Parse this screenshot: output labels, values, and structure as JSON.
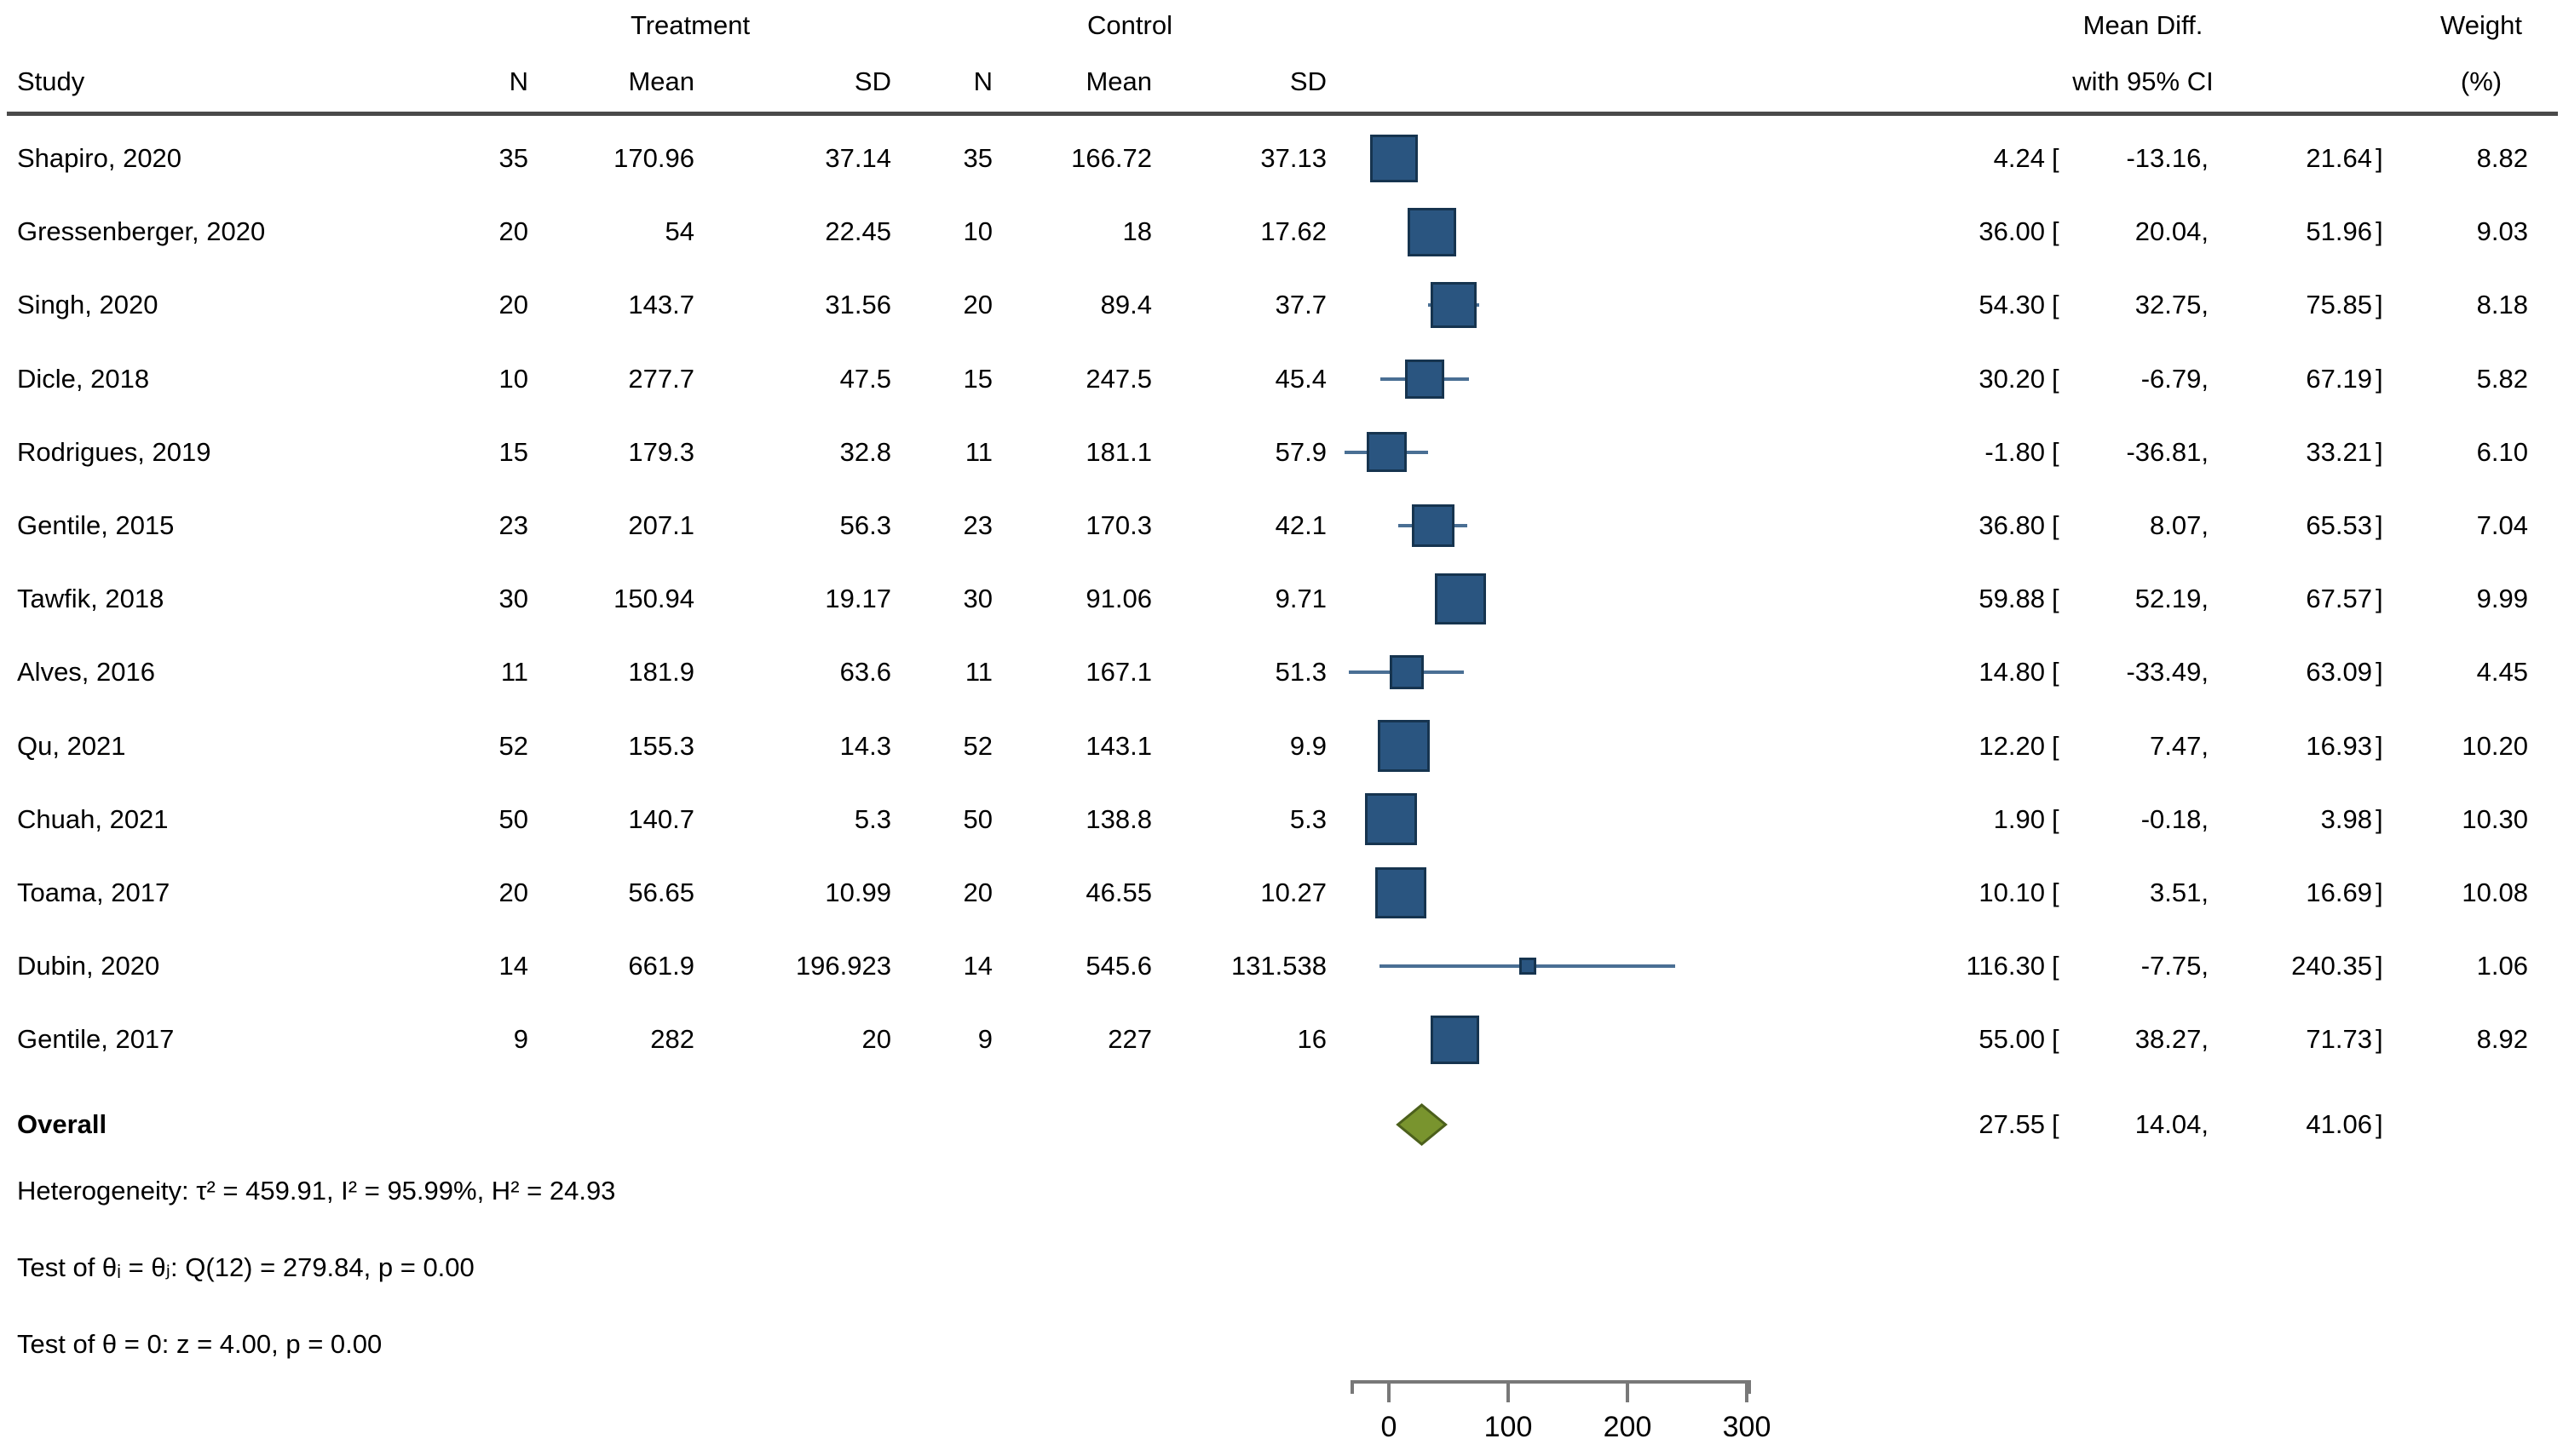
{
  "header": {
    "group1": "Treatment",
    "group2": "Control",
    "col_study": "Study",
    "col_n1": "N",
    "col_mean1": "Mean",
    "col_sd1": "SD",
    "col_n2": "N",
    "col_mean2": "Mean",
    "col_sd2": "SD",
    "col_effect_line1": "Mean Diff.",
    "col_effect_line2": "with 95% CI",
    "col_weight_line1": "Weight",
    "col_weight_line2": "(%)"
  },
  "studies": [
    {
      "name": "Shapiro, 2020",
      "n1": "35",
      "mean1": "170.96",
      "sd1": "37.14",
      "n2": "35",
      "mean2": "166.72",
      "sd2": "37.13",
      "est": "4.24",
      "lo": "-13.16",
      "hi": "21.64",
      "weight": "8.82",
      "est_v": 4.24,
      "lo_v": -13.16,
      "hi_v": 21.64,
      "weight_v": 8.82
    },
    {
      "name": "Gressenberger, 2020",
      "n1": "20",
      "mean1": "54",
      "sd1": "22.45",
      "n2": "10",
      "mean2": "18",
      "sd2": "17.62",
      "est": "36.00",
      "lo": "20.04",
      "hi": "51.96",
      "weight": "9.03",
      "est_v": 36.0,
      "lo_v": 20.04,
      "hi_v": 51.96,
      "weight_v": 9.03
    },
    {
      "name": "Singh, 2020",
      "n1": "20",
      "mean1": "143.7",
      "sd1": "31.56",
      "n2": "20",
      "mean2": "89.4",
      "sd2": "37.7",
      "est": "54.30",
      "lo": "32.75",
      "hi": "75.85",
      "weight": "8.18",
      "est_v": 54.3,
      "lo_v": 32.75,
      "hi_v": 75.85,
      "weight_v": 8.18
    },
    {
      "name": "Dicle, 2018",
      "n1": "10",
      "mean1": "277.7",
      "sd1": "47.5",
      "n2": "15",
      "mean2": "247.5",
      "sd2": "45.4",
      "est": "30.20",
      "lo": "-6.79",
      "hi": "67.19",
      "weight": "5.82",
      "est_v": 30.2,
      "lo_v": -6.79,
      "hi_v": 67.19,
      "weight_v": 5.82
    },
    {
      "name": "Rodrigues, 2019",
      "n1": "15",
      "mean1": "179.3",
      "sd1": "32.8",
      "n2": "11",
      "mean2": "181.1",
      "sd2": "57.9",
      "est": "-1.80",
      "lo": "-36.81",
      "hi": "33.21",
      "weight": "6.10",
      "est_v": -1.8,
      "lo_v": -36.81,
      "hi_v": 33.21,
      "weight_v": 6.1
    },
    {
      "name": "Gentile, 2015",
      "n1": "23",
      "mean1": "207.1",
      "sd1": "56.3",
      "n2": "23",
      "mean2": "170.3",
      "sd2": "42.1",
      "est": "36.80",
      "lo": "8.07",
      "hi": "65.53",
      "weight": "7.04",
      "est_v": 36.8,
      "lo_v": 8.07,
      "hi_v": 65.53,
      "weight_v": 7.04
    },
    {
      "name": "Tawfik, 2018",
      "n1": "30",
      "mean1": "150.94",
      "sd1": "19.17",
      "n2": "30",
      "mean2": "91.06",
      "sd2": "9.71",
      "est": "59.88",
      "lo": "52.19",
      "hi": "67.57",
      "weight": "9.99",
      "est_v": 59.88,
      "lo_v": 52.19,
      "hi_v": 67.57,
      "weight_v": 9.99
    },
    {
      "name": "Alves, 2016",
      "n1": "11",
      "mean1": "181.9",
      "sd1": "63.6",
      "n2": "11",
      "mean2": "167.1",
      "sd2": "51.3",
      "est": "14.80",
      "lo": "-33.49",
      "hi": "63.09",
      "weight": "4.45",
      "est_v": 14.8,
      "lo_v": -33.49,
      "hi_v": 63.09,
      "weight_v": 4.45
    },
    {
      "name": "Qu, 2021",
      "n1": "52",
      "mean1": "155.3",
      "sd1": "14.3",
      "n2": "52",
      "mean2": "143.1",
      "sd2": "9.9",
      "est": "12.20",
      "lo": "7.47",
      "hi": "16.93",
      "weight": "10.20",
      "est_v": 12.2,
      "lo_v": 7.47,
      "hi_v": 16.93,
      "weight_v": 10.2
    },
    {
      "name": "Chuah, 2021",
      "n1": "50",
      "mean1": "140.7",
      "sd1": "5.3",
      "n2": "50",
      "mean2": "138.8",
      "sd2": "5.3",
      "est": "1.90",
      "lo": "-0.18",
      "hi": "3.98",
      "weight": "10.30",
      "est_v": 1.9,
      "lo_v": -0.18,
      "hi_v": 3.98,
      "weight_v": 10.3
    },
    {
      "name": "Toama, 2017",
      "n1": "20",
      "mean1": "56.65",
      "sd1": "10.99",
      "n2": "20",
      "mean2": "46.55",
      "sd2": "10.27",
      "est": "10.10",
      "lo": "3.51",
      "hi": "16.69",
      "weight": "10.08",
      "est_v": 10.1,
      "lo_v": 3.51,
      "hi_v": 16.69,
      "weight_v": 10.08
    },
    {
      "name": "Dubin, 2020",
      "n1": "14",
      "mean1": "661.9",
      "sd1": "196.923",
      "n2": "14",
      "mean2": "545.6",
      "sd2": "131.538",
      "est": "116.30",
      "lo": "-7.75",
      "hi": "240.35",
      "weight": "1.06",
      "est_v": 116.3,
      "lo_v": -7.75,
      "hi_v": 240.35,
      "weight_v": 1.06
    },
    {
      "name": "Gentile, 2017",
      "n1": "9",
      "mean1": "282",
      "sd1": "20",
      "n2": "9",
      "mean2": "227",
      "sd2": "16",
      "est": "55.00",
      "lo": "38.27",
      "hi": "71.73",
      "weight": "8.92",
      "est_v": 55.0,
      "lo_v": 38.27,
      "hi_v": 71.73,
      "weight_v": 8.92
    }
  ],
  "overall": {
    "label": "Overall",
    "est": "27.55",
    "lo": "14.04",
    "hi": "41.06",
    "est_v": 27.55,
    "lo_v": 14.04,
    "hi_v": 41.06
  },
  "stats": {
    "heterogeneity": "Heterogeneity: τ² = 459.91, I² = 95.99%, H² = 24.93",
    "test_theta_i": "Test of θᵢ = θⱼ: Q(12) = 279.84, p = 0.00",
    "test_theta_zero": "Test of θ = 0: z = 4.00, p = 0.00"
  },
  "axis": {
    "ticks": [
      "0",
      "100",
      "200",
      "300"
    ]
  },
  "colors": {
    "marker_fill": "#2a5580",
    "marker_border": "#16344f",
    "whisker": "#4a6f94",
    "diamond_fill": "#79942e",
    "diamond_border": "#4c601c",
    "rule": "#4a4a4a",
    "axis": "#787878",
    "text": "#000000"
  },
  "chart_data": {
    "type": "scatter",
    "subtype": "forest-plot",
    "title": "",
    "xlabel": "",
    "x_axis": {
      "tick_values": [
        0,
        100,
        200,
        300
      ],
      "shown_range_approx": [
        -30,
        305
      ],
      "grid": false
    },
    "effect_label": "Mean Diff. with 95% CI",
    "series": [
      {
        "name": "Mean Diff. with 95% CI",
        "points": [
          {
            "study": "Shapiro, 2020",
            "x": 4.24,
            "ci": [
              -13.16,
              21.64
            ],
            "weight_pct": 8.82
          },
          {
            "study": "Gressenberger, 2020",
            "x": 36.0,
            "ci": [
              20.04,
              51.96
            ],
            "weight_pct": 9.03
          },
          {
            "study": "Singh, 2020",
            "x": 54.3,
            "ci": [
              32.75,
              75.85
            ],
            "weight_pct": 8.18
          },
          {
            "study": "Dicle, 2018",
            "x": 30.2,
            "ci": [
              -6.79,
              67.19
            ],
            "weight_pct": 5.82
          },
          {
            "study": "Rodrigues, 2019",
            "x": -1.8,
            "ci": [
              -36.81,
              33.21
            ],
            "weight_pct": 6.1
          },
          {
            "study": "Gentile, 2015",
            "x": 36.8,
            "ci": [
              8.07,
              65.53
            ],
            "weight_pct": 7.04
          },
          {
            "study": "Tawfik, 2018",
            "x": 59.88,
            "ci": [
              52.19,
              67.57
            ],
            "weight_pct": 9.99
          },
          {
            "study": "Alves, 2016",
            "x": 14.8,
            "ci": [
              -33.49,
              63.09
            ],
            "weight_pct": 4.45
          },
          {
            "study": "Qu, 2021",
            "x": 12.2,
            "ci": [
              7.47,
              16.93
            ],
            "weight_pct": 10.2
          },
          {
            "study": "Chuah, 2021",
            "x": 1.9,
            "ci": [
              -0.18,
              3.98
            ],
            "weight_pct": 10.3
          },
          {
            "study": "Toama, 2017",
            "x": 10.1,
            "ci": [
              3.51,
              16.69
            ],
            "weight_pct": 10.08
          },
          {
            "study": "Dubin, 2020",
            "x": 116.3,
            "ci": [
              -7.75,
              240.35
            ],
            "weight_pct": 1.06
          },
          {
            "study": "Gentile, 2017",
            "x": 55.0,
            "ci": [
              38.27,
              71.73
            ],
            "weight_pct": 8.92
          }
        ]
      }
    ],
    "overall_diamond": {
      "x": 27.55,
      "ci": [
        14.04,
        41.06
      ]
    },
    "heterogeneity": {
      "tau2": 459.91,
      "I2_pct": 95.99,
      "H2": 24.93,
      "Q_df": 12,
      "Q": 279.84,
      "p_Q": 0.0,
      "z": 4.0,
      "p_z": 0.0
    }
  }
}
